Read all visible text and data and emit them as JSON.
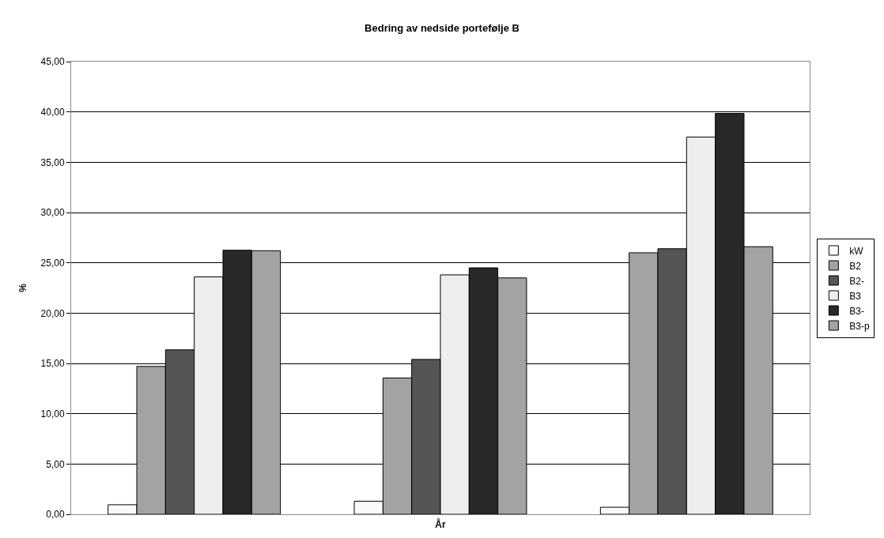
{
  "chart_data": {
    "type": "bar",
    "title": "Bedring av nedside portefølje B",
    "xlabel": "År",
    "ylabel": "%",
    "categories": [
      null,
      null,
      null
    ],
    "series": [
      {
        "name": "kW",
        "color": "#fafafa",
        "values": [
          0.95,
          1.3,
          0.7
        ]
      },
      {
        "name": "B2",
        "color": "#a3a3a3",
        "values": [
          14.7,
          13.55,
          26.0
        ]
      },
      {
        "name": "B2-",
        "color": "#555555",
        "values": [
          16.35,
          15.4,
          26.4
        ]
      },
      {
        "name": "B3",
        "color": "#eeeeee",
        "values": [
          23.6,
          23.8,
          37.5
        ]
      },
      {
        "name": "B3-",
        "color": "#282828",
        "values": [
          26.25,
          24.5,
          39.85
        ]
      },
      {
        "name": "B3-p",
        "color": "#a3a3a3",
        "values": [
          26.2,
          23.5,
          26.6
        ]
      }
    ],
    "ylim": [
      0,
      45
    ],
    "yticks": [
      {
        "value": 0,
        "label": "0,00"
      },
      {
        "value": 5,
        "label": "5,00"
      },
      {
        "value": 10,
        "label": "10,00"
      },
      {
        "value": 15,
        "label": "15,00"
      },
      {
        "value": 20,
        "label": "20,00"
      },
      {
        "value": 25,
        "label": "25,00"
      },
      {
        "value": 30,
        "label": "30,00"
      },
      {
        "value": 35,
        "label": "35,00"
      },
      {
        "value": 40,
        "label": "40,00"
      },
      {
        "value": 45,
        "label": "45,00"
      }
    ],
    "grid": "y",
    "legend": "right"
  }
}
